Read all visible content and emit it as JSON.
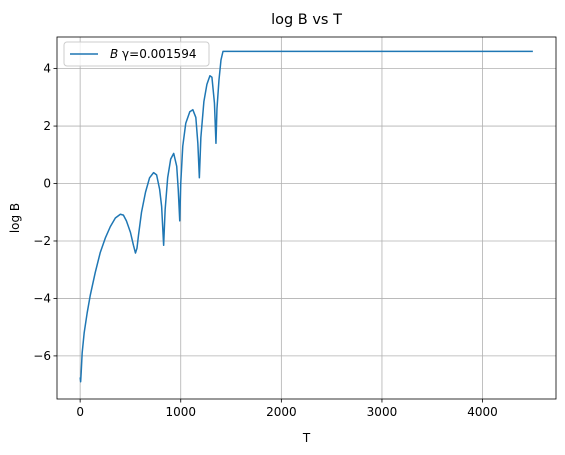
{
  "chart_data": {
    "type": "line",
    "title": "log B vs T",
    "xlabel": "T",
    "ylabel": "log B",
    "xlim": [
      -230,
      4730
    ],
    "ylim": [
      -7.5,
      5.1
    ],
    "xticks": [
      0,
      1000,
      2000,
      3000,
      4000
    ],
    "yticks": [
      -6,
      -4,
      -2,
      0,
      2,
      4
    ],
    "grid": true,
    "legend_position": "top-left",
    "series": [
      {
        "name": "B γ=0.001594",
        "legend_prefix": "B",
        "legend_suffix": " γ=0.001594",
        "color": "#1f77b4",
        "points": [
          [
            0,
            -6.75
          ],
          [
            5,
            -6.9
          ],
          [
            10,
            -6.6
          ],
          [
            20,
            -5.9
          ],
          [
            40,
            -5.2
          ],
          [
            70,
            -4.5
          ],
          [
            100,
            -3.9
          ],
          [
            150,
            -3.1
          ],
          [
            200,
            -2.4
          ],
          [
            250,
            -1.9
          ],
          [
            300,
            -1.5
          ],
          [
            350,
            -1.2
          ],
          [
            400,
            -1.07
          ],
          [
            430,
            -1.1
          ],
          [
            460,
            -1.3
          ],
          [
            500,
            -1.7
          ],
          [
            530,
            -2.15
          ],
          [
            550,
            -2.42
          ],
          [
            565,
            -2.25
          ],
          [
            580,
            -1.8
          ],
          [
            610,
            -1.0
          ],
          [
            650,
            -0.3
          ],
          [
            690,
            0.2
          ],
          [
            730,
            0.38
          ],
          [
            760,
            0.3
          ],
          [
            790,
            -0.2
          ],
          [
            810,
            -0.8
          ],
          [
            830,
            -2.15
          ],
          [
            845,
            -0.9
          ],
          [
            870,
            0.2
          ],
          [
            900,
            0.85
          ],
          [
            930,
            1.05
          ],
          [
            960,
            0.6
          ],
          [
            975,
            -0.2
          ],
          [
            990,
            -1.3
          ],
          [
            1000,
            0.0
          ],
          [
            1020,
            1.3
          ],
          [
            1050,
            2.1
          ],
          [
            1090,
            2.5
          ],
          [
            1120,
            2.57
          ],
          [
            1150,
            2.3
          ],
          [
            1170,
            1.4
          ],
          [
            1185,
            0.2
          ],
          [
            1200,
            1.6
          ],
          [
            1230,
            2.85
          ],
          [
            1260,
            3.45
          ],
          [
            1290,
            3.75
          ],
          [
            1310,
            3.7
          ],
          [
            1335,
            2.8
          ],
          [
            1350,
            1.4
          ],
          [
            1360,
            2.6
          ],
          [
            1380,
            3.6
          ],
          [
            1400,
            4.3
          ],
          [
            1420,
            4.6
          ],
          [
            4500,
            4.6
          ]
        ]
      }
    ]
  }
}
